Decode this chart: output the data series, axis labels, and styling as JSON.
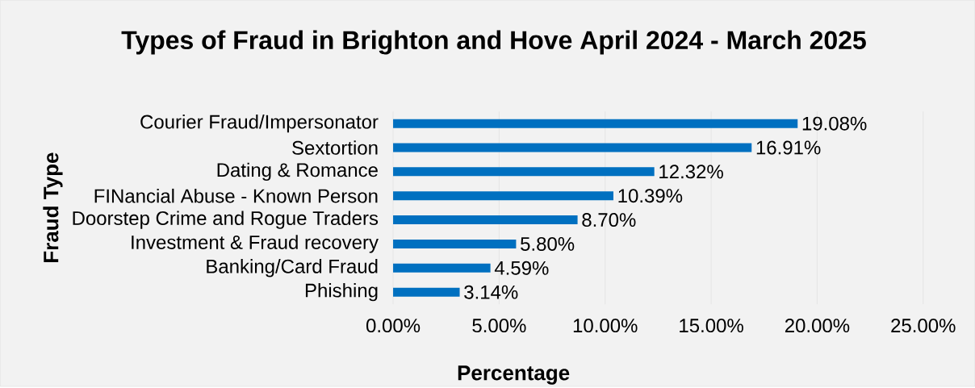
{
  "chart_data": {
    "type": "bar",
    "orientation": "horizontal",
    "title": "Types of Fraud in Brighton and Hove April 2024 - March 2025",
    "xlabel": "Percentage",
    "ylabel": "Fraud Type",
    "categories": [
      "Courier Fraud/Impersonator",
      "Sextortion",
      "Dating & Romance",
      "FINancial Abuse - Known Person",
      "Doorstep Crime and Rogue Traders",
      "Investment & Fraud recovery",
      "Banking/Card Fraud",
      "Phishing"
    ],
    "values": [
      19.08,
      16.91,
      12.32,
      10.39,
      8.7,
      5.8,
      4.59,
      3.14
    ],
    "value_labels": [
      "19.08%",
      "16.91%",
      "12.32%",
      "10.39%",
      "8.70%",
      "5.80%",
      "4.59%",
      "3.14%"
    ],
    "color": "#0070c0",
    "xlim": [
      0,
      25
    ],
    "xticks": [
      {
        "value": 0,
        "label": "0.00%"
      },
      {
        "value": 5,
        "label": "5.00%"
      },
      {
        "value": 10,
        "label": "10.00%"
      },
      {
        "value": 15,
        "label": "15.00%"
      },
      {
        "value": 20,
        "label": "20.00%"
      },
      {
        "value": 25,
        "label": "25.00%"
      }
    ],
    "grid": "x"
  }
}
